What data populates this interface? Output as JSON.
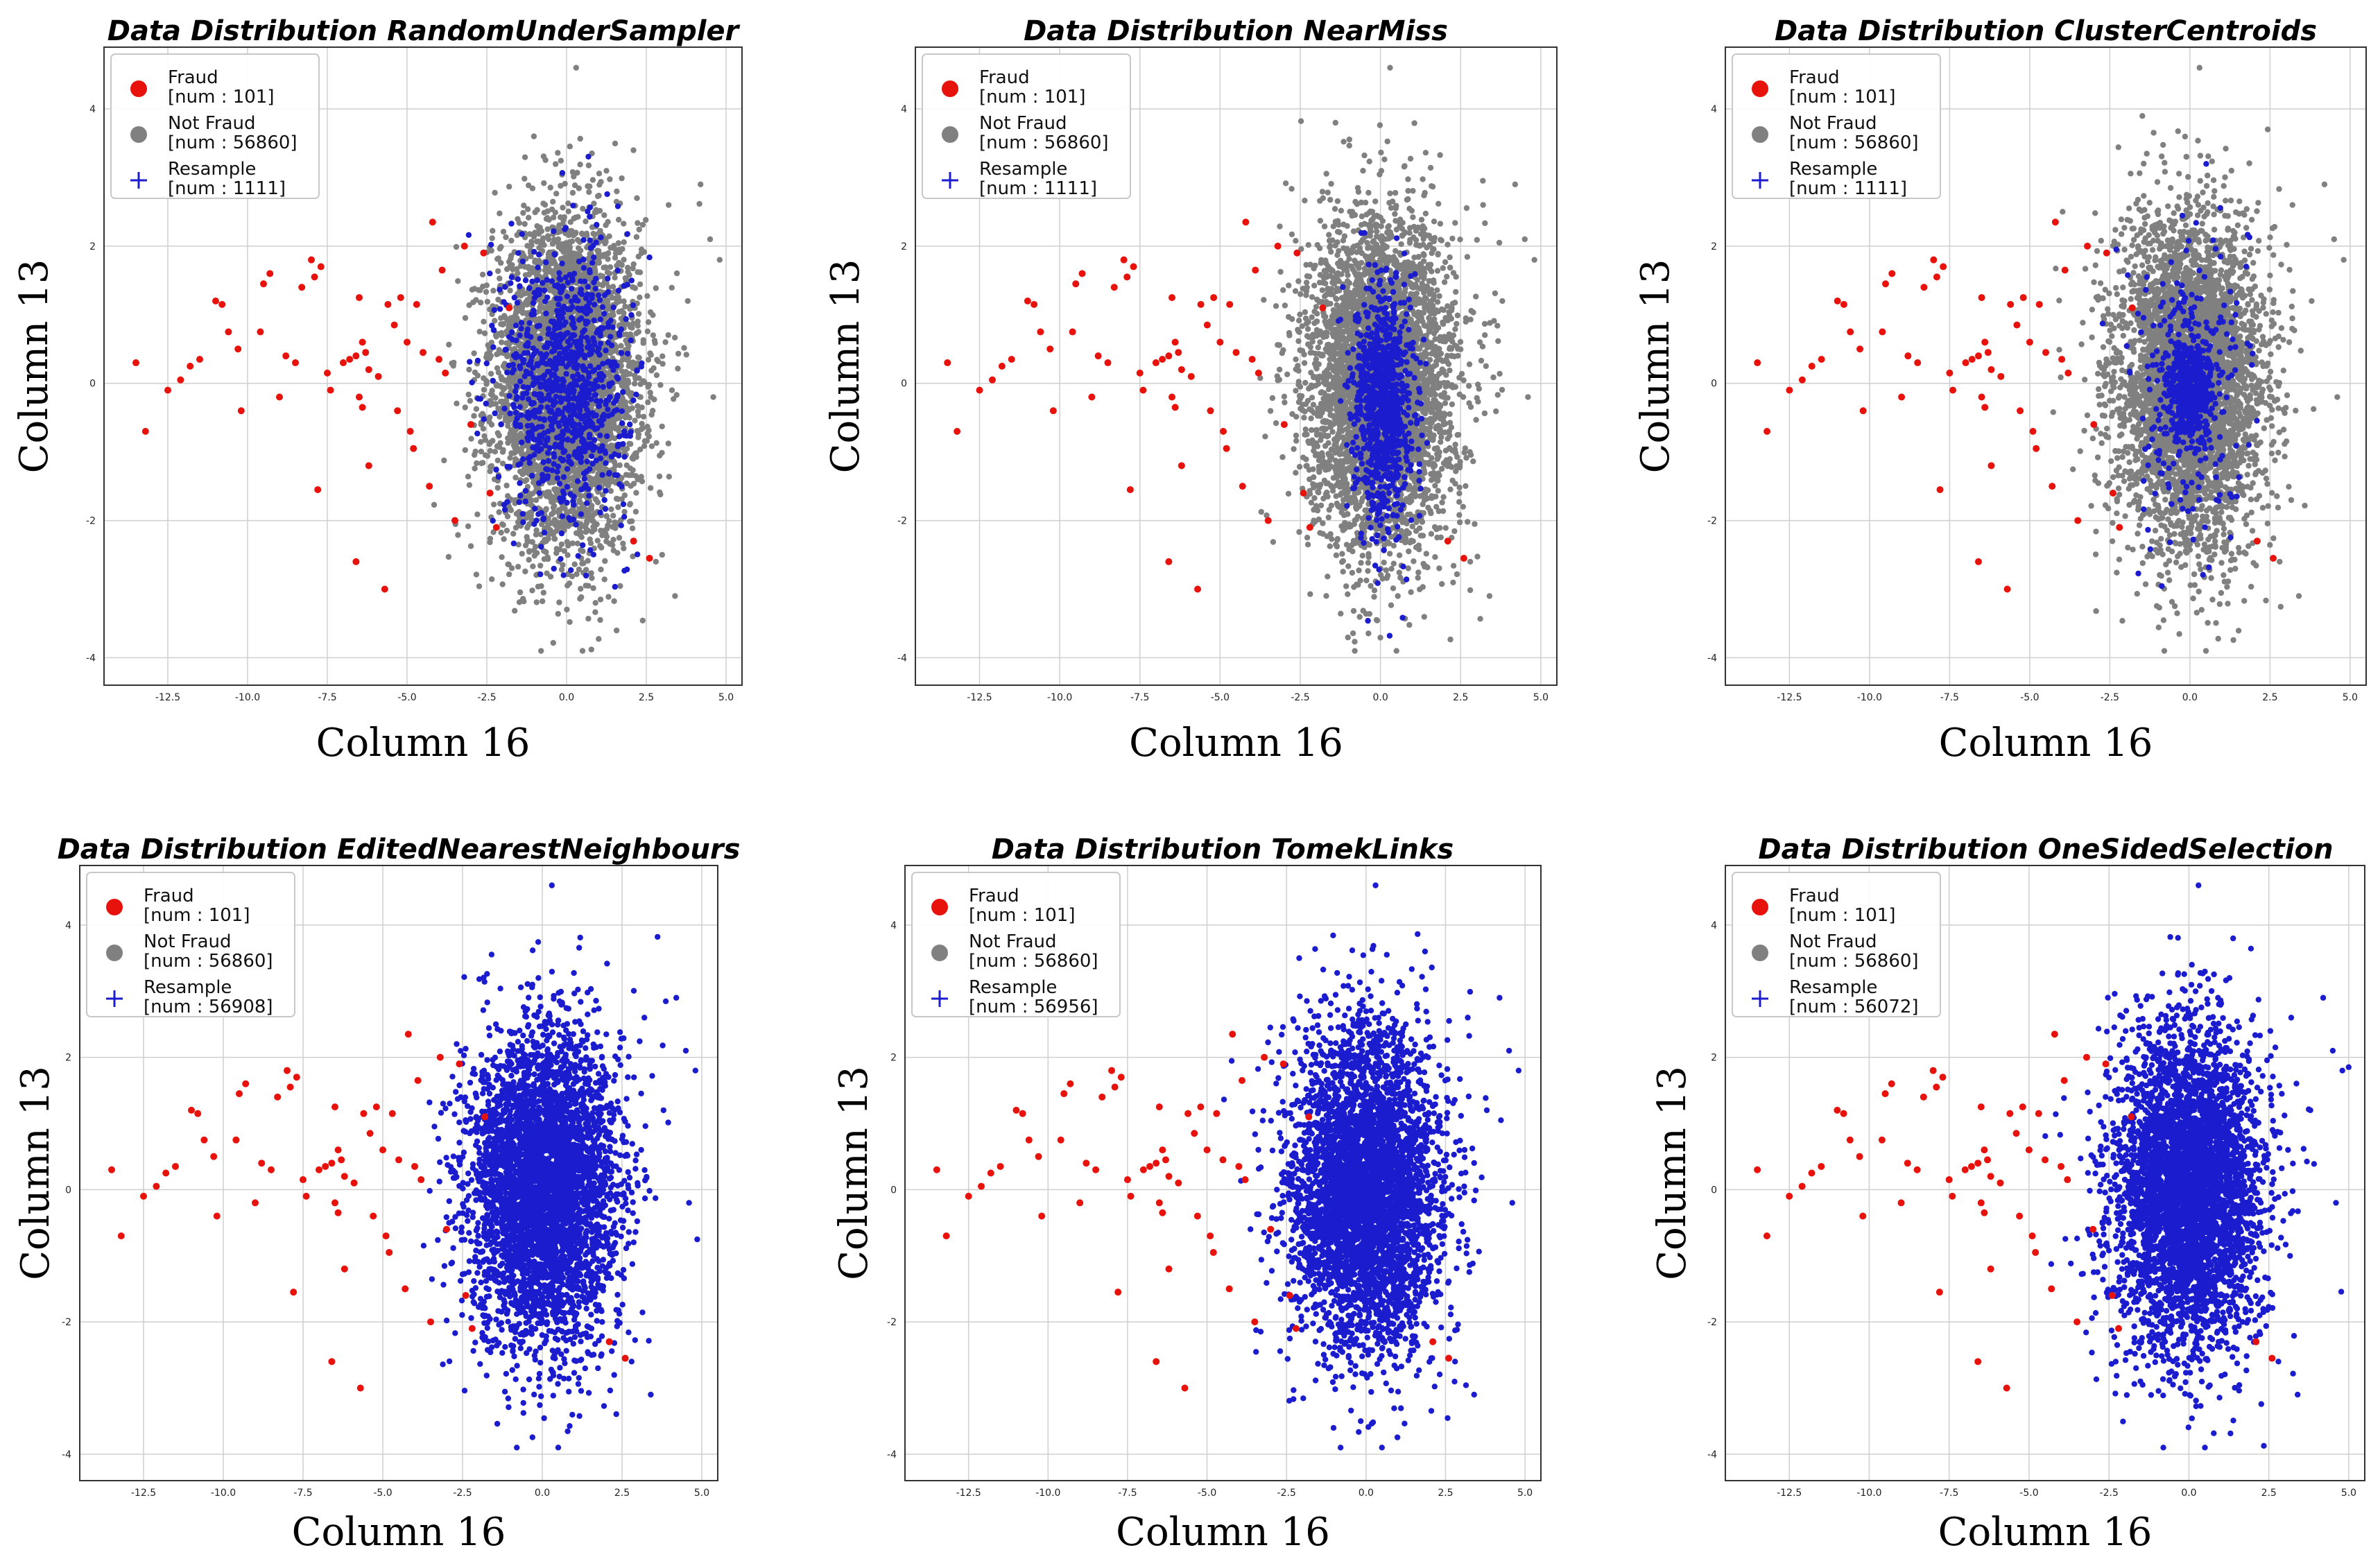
{
  "chart_data": [
    {
      "type": "scatter",
      "title": "Data Distribution RandomUnderSampler",
      "xlabel": "Column 16",
      "ylabel": "Column 13",
      "xlim": [
        -14.5,
        5.5
      ],
      "ylim": [
        -4.4,
        4.9
      ],
      "xticks": [
        "-12.5",
        "-10.0",
        "-7.5",
        "-5.0",
        "-2.5",
        "0.0",
        "2.5",
        "5.0"
      ],
      "yticks": [
        "4",
        "2",
        "0",
        "-2",
        "-4"
      ],
      "grid": true,
      "legend_position": "top-left",
      "legend": [
        {
          "label": "Fraud",
          "count": "[num : 101]",
          "color": "#e8120c",
          "marker": "dot"
        },
        {
          "label": "Not Fraud",
          "count": "[num : 56860]",
          "color": "#808080",
          "marker": "dot"
        },
        {
          "label": "Resample",
          "count": "[num : 1111]",
          "color": "#1c1ccf",
          "marker": "plus"
        }
      ],
      "series": [
        {
          "name": "Not Fraud",
          "color": "#808080",
          "center": [
            0.0,
            0.0
          ],
          "spread": [
            1.15,
            1.2
          ],
          "density": "heavy"
        },
        {
          "name": "Fraud",
          "color": "#e8120c",
          "points": "shared_fraud_points"
        },
        {
          "name": "Resample",
          "color": "#1c1ccf",
          "center": [
            0.0,
            0.0
          ],
          "spread": [
            0.95,
            1.0
          ],
          "density": "sparse"
        }
      ]
    },
    {
      "type": "scatter",
      "title": "Data Distribution NearMiss",
      "xlabel": "Column 16",
      "ylabel": "Column 13",
      "xlim": [
        -14.5,
        5.5
      ],
      "ylim": [
        -4.4,
        4.9
      ],
      "xticks": [
        "-12.5",
        "-10.0",
        "-7.5",
        "-5.0",
        "-2.5",
        "0.0",
        "2.5",
        "5.0"
      ],
      "yticks": [
        "4",
        "2",
        "0",
        "-2",
        "-4"
      ],
      "grid": true,
      "legend_position": "top-left",
      "legend": [
        {
          "label": "Fraud",
          "count": "[num : 101]",
          "color": "#e8120c",
          "marker": "dot"
        },
        {
          "label": "Not Fraud",
          "count": "[num : 56860]",
          "color": "#808080",
          "marker": "dot"
        },
        {
          "label": "Resample",
          "count": "[num : 1111]",
          "color": "#1c1ccf",
          "marker": "plus"
        }
      ],
      "series": [
        {
          "name": "Not Fraud",
          "color": "#808080",
          "center": [
            0.0,
            0.0
          ],
          "spread": [
            1.15,
            1.2
          ],
          "density": "heavy"
        },
        {
          "name": "Fraud",
          "color": "#e8120c",
          "points": "shared_fraud_points"
        },
        {
          "name": "Resample",
          "color": "#1c1ccf",
          "center": [
            0.1,
            -0.3
          ],
          "spread": [
            0.45,
            0.85
          ],
          "density": "sparse"
        }
      ]
    },
    {
      "type": "scatter",
      "title": "Data Distribution ClusterCentroids",
      "xlabel": "Column 16",
      "ylabel": "Column 13",
      "xlim": [
        -14.5,
        5.5
      ],
      "ylim": [
        -4.4,
        4.9
      ],
      "xticks": [
        "-12.5",
        "-10.0",
        "-7.5",
        "-5.0",
        "-2.5",
        "0.0",
        "2.5",
        "5.0"
      ],
      "yticks": [
        "4",
        "2",
        "0",
        "-2",
        "-4"
      ],
      "grid": true,
      "legend_position": "top-left",
      "legend": [
        {
          "label": "Fraud",
          "count": "[num : 101]",
          "color": "#e8120c",
          "marker": "dot"
        },
        {
          "label": "Not Fraud",
          "count": "[num : 56860]",
          "color": "#808080",
          "marker": "dot"
        },
        {
          "label": "Resample",
          "count": "[num : 1111]",
          "color": "#1c1ccf",
          "marker": "plus"
        }
      ],
      "series": [
        {
          "name": "Not Fraud",
          "color": "#808080",
          "center": [
            0.0,
            0.0
          ],
          "spread": [
            1.15,
            1.2
          ],
          "density": "heavy"
        },
        {
          "name": "Fraud",
          "color": "#e8120c",
          "points": "shared_fraud_points"
        },
        {
          "name": "Resample",
          "color": "#1c1ccf",
          "center": [
            0.0,
            -0.1
          ],
          "spread": [
            0.35,
            0.35
          ],
          "density": "clustered"
        }
      ]
    },
    {
      "type": "scatter",
      "title": "Data Distribution EditedNearestNeighbours",
      "xlabel": "Column 16",
      "ylabel": "Column 13",
      "xlim": [
        -14.5,
        5.5
      ],
      "ylim": [
        -4.4,
        4.9
      ],
      "xticks": [
        "-12.5",
        "-10.0",
        "-7.5",
        "-5.0",
        "-2.5",
        "0.0",
        "2.5",
        "5.0"
      ],
      "yticks": [
        "4",
        "2",
        "0",
        "-2",
        "-4"
      ],
      "grid": true,
      "legend_position": "top-left",
      "legend": [
        {
          "label": "Fraud",
          "count": "[num : 101]",
          "color": "#e8120c",
          "marker": "dot"
        },
        {
          "label": "Not Fraud",
          "count": "[num : 56860]",
          "color": "#808080",
          "marker": "dot"
        },
        {
          "label": "Resample",
          "count": "[num : 56908]",
          "color": "#1c1ccf",
          "marker": "plus"
        }
      ],
      "series": [
        {
          "name": "Not Fraud",
          "color": "#808080",
          "center": [
            0.0,
            0.0
          ],
          "spread": [
            1.15,
            1.2
          ],
          "density": "hidden"
        },
        {
          "name": "Fraud",
          "color": "#e8120c",
          "points": "shared_fraud_points"
        },
        {
          "name": "Resample",
          "color": "#1c1ccf",
          "center": [
            0.0,
            0.0
          ],
          "spread": [
            1.15,
            1.2
          ],
          "density": "heavy"
        }
      ]
    },
    {
      "type": "scatter",
      "title": "Data Distribution TomekLinks",
      "xlabel": "Column 16",
      "ylabel": "Column 13",
      "xlim": [
        -14.5,
        5.5
      ],
      "ylim": [
        -4.4,
        4.9
      ],
      "xticks": [
        "-12.5",
        "-10.0",
        "-7.5",
        "-5.0",
        "-2.5",
        "0.0",
        "2.5",
        "5.0"
      ],
      "yticks": [
        "4",
        "2",
        "0",
        "-2",
        "-4"
      ],
      "grid": true,
      "legend_position": "top-left",
      "legend": [
        {
          "label": "Fraud",
          "count": "[num : 101]",
          "color": "#e8120c",
          "marker": "dot"
        },
        {
          "label": "Not Fraud",
          "count": "[num : 56860]",
          "color": "#808080",
          "marker": "dot"
        },
        {
          "label": "Resample",
          "count": "[num : 56956]",
          "color": "#1c1ccf",
          "marker": "plus"
        }
      ],
      "series": [
        {
          "name": "Not Fraud",
          "color": "#808080",
          "center": [
            0.0,
            0.0
          ],
          "spread": [
            1.15,
            1.2
          ],
          "density": "hidden"
        },
        {
          "name": "Fraud",
          "color": "#e8120c",
          "points": "shared_fraud_points"
        },
        {
          "name": "Resample",
          "color": "#1c1ccf",
          "center": [
            0.0,
            0.0
          ],
          "spread": [
            1.15,
            1.2
          ],
          "density": "heavy"
        }
      ]
    },
    {
      "type": "scatter",
      "title": "Data Distribution OneSidedSelection",
      "xlabel": "Column 16",
      "ylabel": "Column 13",
      "xlim": [
        -14.5,
        5.5
      ],
      "ylim": [
        -4.4,
        4.9
      ],
      "xticks": [
        "-12.5",
        "-10.0",
        "-7.5",
        "-5.0",
        "-2.5",
        "0.0",
        "2.5",
        "5.0"
      ],
      "yticks": [
        "4",
        "2",
        "0",
        "-2",
        "-4"
      ],
      "grid": true,
      "legend_position": "top-left",
      "legend": [
        {
          "label": "Fraud",
          "count": "[num : 101]",
          "color": "#e8120c",
          "marker": "dot"
        },
        {
          "label": "Not Fraud",
          "count": "[num : 56860]",
          "color": "#808080",
          "marker": "dot"
        },
        {
          "label": "Resample",
          "count": "[num : 56072]",
          "color": "#1c1ccf",
          "marker": "plus"
        }
      ],
      "series": [
        {
          "name": "Not Fraud",
          "color": "#808080",
          "center": [
            0.0,
            0.0
          ],
          "spread": [
            1.15,
            1.2
          ],
          "density": "hidden"
        },
        {
          "name": "Fraud",
          "color": "#e8120c",
          "points": "shared_fraud_points"
        },
        {
          "name": "Resample",
          "color": "#1c1ccf",
          "center": [
            0.0,
            0.0
          ],
          "spread": [
            1.15,
            1.2
          ],
          "density": "heavy"
        }
      ]
    }
  ],
  "shared_fraud_points": [
    [
      -13.5,
      0.3
    ],
    [
      -13.2,
      -0.7
    ],
    [
      -12.1,
      0.05
    ],
    [
      -11.8,
      0.25
    ],
    [
      -11.5,
      0.35
    ],
    [
      -11.0,
      1.2
    ],
    [
      -10.8,
      1.15
    ],
    [
      -10.6,
      0.75
    ],
    [
      -10.3,
      0.5
    ],
    [
      -10.2,
      -0.4
    ],
    [
      -9.5,
      1.45
    ],
    [
      -9.3,
      1.6
    ],
    [
      -9.0,
      -0.2
    ],
    [
      -8.5,
      0.3
    ],
    [
      -8.3,
      1.4
    ],
    [
      -8.0,
      1.8
    ],
    [
      -7.9,
      1.55
    ],
    [
      -7.8,
      -1.55
    ],
    [
      -7.7,
      1.7
    ],
    [
      -7.5,
      0.15
    ],
    [
      -7.4,
      -0.1
    ],
    [
      -7.0,
      0.3
    ],
    [
      -6.8,
      0.35
    ],
    [
      -6.6,
      0.4
    ],
    [
      -6.5,
      1.25
    ],
    [
      -6.4,
      0.6
    ],
    [
      -6.3,
      0.45
    ],
    [
      -6.2,
      0.2
    ],
    [
      -6.5,
      -0.2
    ],
    [
      -6.4,
      -0.35
    ],
    [
      -6.2,
      -1.2
    ],
    [
      -6.6,
      -2.6
    ],
    [
      -5.7,
      -3.0
    ],
    [
      -5.6,
      1.15
    ],
    [
      -5.4,
      0.85
    ],
    [
      -5.3,
      -0.4
    ],
    [
      -5.2,
      1.25
    ],
    [
      -5.0,
      0.6
    ],
    [
      -4.9,
      -0.7
    ],
    [
      -4.8,
      -0.95
    ],
    [
      -4.7,
      1.15
    ],
    [
      -4.5,
      0.45
    ],
    [
      -4.2,
      2.35
    ],
    [
      -4.0,
      0.35
    ],
    [
      -3.9,
      1.65
    ],
    [
      -3.8,
      0.15
    ],
    [
      -3.5,
      -2.0
    ],
    [
      -3.2,
      2.0
    ],
    [
      -2.6,
      1.9
    ],
    [
      -2.4,
      -1.6
    ],
    [
      -2.2,
      -2.1
    ],
    [
      2.6,
      -2.55
    ],
    [
      2.1,
      -2.3
    ],
    [
      -1.8,
      1.1
    ],
    [
      -4.3,
      -1.5
    ],
    [
      -5.9,
      0.1
    ],
    [
      -8.8,
      0.4
    ],
    [
      -9.6,
      0.75
    ],
    [
      -12.5,
      -0.1
    ],
    [
      -3.0,
      -0.6
    ]
  ],
  "style": {
    "fraud_color": "#e8120c",
    "not_fraud_color": "#808080",
    "resample_color": "#1c1ccf"
  }
}
